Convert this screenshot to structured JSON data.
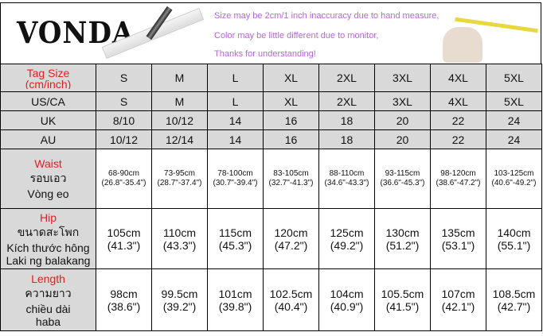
{
  "banner": {
    "logo": "VONDA",
    "notes": [
      "Size may be 2cm/1 inch inaccuracy due to hand measure,",
      "Color may be little different due to monitor,",
      "Thanks for understanding!"
    ]
  },
  "header": {
    "label": "Tag Size",
    "sublabel": "(cm/inch)",
    "sizes": [
      "S",
      "M",
      "L",
      "XL",
      "2XL",
      "3XL",
      "4XL",
      "5XL"
    ]
  },
  "rows": [
    {
      "label": "US/CA",
      "values": [
        "S",
        "M",
        "L",
        "XL",
        "2XL",
        "3XL",
        "4XL",
        "5XL"
      ]
    },
    {
      "label": "UK",
      "values": [
        "8/10",
        "10/12",
        "14",
        "16",
        "18",
        "20",
        "22",
        "24"
      ]
    },
    {
      "label": "AU",
      "values": [
        "10/12",
        "12/14",
        "14",
        "16",
        "18",
        "20",
        "22",
        "24"
      ]
    }
  ],
  "measures": [
    {
      "label": "Waist",
      "lines": [
        "รอบเอว",
        "Vòng eo"
      ],
      "cm": [
        "68-90cm",
        "73-95cm",
        "78-100cm",
        "83-105cm",
        "88-110cm",
        "93-115cm",
        "98-120cm",
        "103-125cm"
      ],
      "inch": [
        "(26.8\"-35.4\")",
        "(28.7\"-37.4\")",
        "(30.7\"-39.4\")",
        "(32.7\"-41.3\")",
        "(34.6\"-43.3\")",
        "(36.6\"-45.3\")",
        "(38.6\"-47.2\")",
        "(40.6\"-49.2\")"
      ]
    },
    {
      "label": "Hip",
      "lines": [
        "ขนาดสะโพก",
        "Kích thước hông",
        "Laki ng balakang"
      ],
      "cm": [
        "105cm",
        "110cm",
        "115cm",
        "120cm",
        "125cm",
        "130cm",
        "135cm",
        "140cm"
      ],
      "inch": [
        "(41.3\")",
        "(43.3\")",
        "(45.3\")",
        "(47.2\")",
        "(49.2\")",
        "(51.2\")",
        "(53.1\")",
        "(55.1\")"
      ]
    },
    {
      "label": "Length",
      "lines": [
        "ความยาว",
        "chiều dài",
        "haba"
      ],
      "cm": [
        "98cm",
        "99.5cm",
        "101cm",
        "102.5cm",
        "104cm",
        "105.5cm",
        "107cm",
        "108.5cm"
      ],
      "inch": [
        "(38.6\")",
        "(39.2\")",
        "(39.8\")",
        "(40.4\")",
        "(40.9\")",
        "(41.5\")",
        "(42.1\")",
        "(42.7\")"
      ]
    }
  ],
  "colors": {
    "label_red": "#e02020",
    "header_gray": "#d9d9d9",
    "note_purple": "#b566d6"
  }
}
